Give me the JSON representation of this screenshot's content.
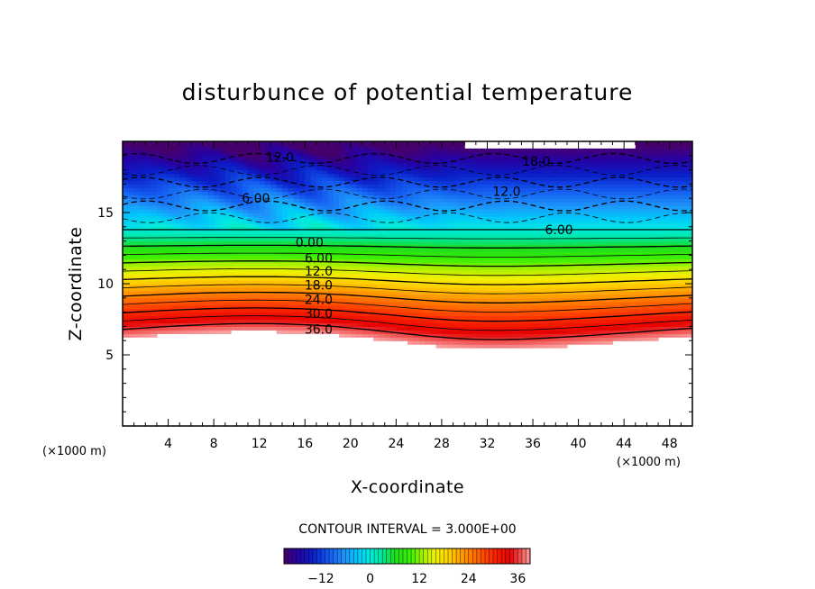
{
  "chart_data": {
    "type": "heatmap",
    "title": "disturbunce of potential temperature",
    "xlabel": "X-coordinate",
    "ylabel": "Z-coordinate",
    "x_unit": "(×1000 m)",
    "y_unit": "(×1000 m)",
    "xlim": [
      0,
      50
    ],
    "ylim": [
      0,
      20
    ],
    "x_ticks": [
      4,
      8,
      12,
      16,
      20,
      24,
      28,
      32,
      36,
      40,
      44,
      48
    ],
    "y_ticks": [
      5,
      10,
      15
    ],
    "contour_interval_text": "CONTOUR INTERVAL = 3.000E+00",
    "contour_interval": 3.0,
    "colorbar": {
      "range": [
        -21,
        39
      ],
      "ticks": [
        -12,
        0,
        12,
        24,
        36
      ],
      "tick_labels": [
        "−12",
        "0",
        "12",
        "24",
        "36"
      ]
    },
    "contour_labels": [
      {
        "text": "12.0",
        "x": 13.8,
        "z": 18.9
      },
      {
        "text": "18.0",
        "x": 36.3,
        "z": 18.6
      },
      {
        "text": "6.00",
        "x": 11.7,
        "z": 16.0
      },
      {
        "text": "12.0",
        "x": 33.7,
        "z": 16.5
      },
      {
        "text": "6.00",
        "x": 38.3,
        "z": 13.8
      },
      {
        "text": "0.00",
        "x": 16.4,
        "z": 12.9
      },
      {
        "text": "6.00",
        "x": 17.2,
        "z": 11.8
      },
      {
        "text": "12.0",
        "x": 17.2,
        "z": 10.9
      },
      {
        "text": "18.0",
        "x": 17.2,
        "z": 9.9
      },
      {
        "text": "24.0",
        "x": 17.2,
        "z": 8.9
      },
      {
        "text": "30.0",
        "x": 17.2,
        "z": 7.9
      },
      {
        "text": "36.0",
        "x": 17.2,
        "z": 6.8
      }
    ]
  }
}
